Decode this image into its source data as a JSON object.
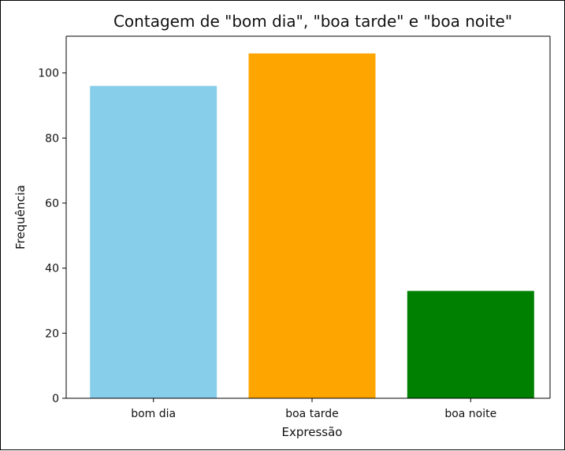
{
  "chart_data": {
    "type": "bar",
    "title": "Contagem de \"bom dia\", \"boa tarde\" e \"boa noite\"",
    "xlabel": "Expressão",
    "ylabel": "Frequência",
    "categories": [
      "bom dia",
      "boa tarde",
      "boa noite"
    ],
    "values": [
      96,
      106,
      33
    ],
    "colors": [
      "#87CEEB",
      "#FFA500",
      "#008000"
    ],
    "ylim": [
      0,
      111.3
    ],
    "yticks": [
      0,
      20,
      40,
      60,
      80,
      100
    ],
    "ytick_labels": [
      "0",
      "20",
      "40",
      "60",
      "80",
      "100"
    ],
    "grid": false,
    "legend": "none"
  }
}
